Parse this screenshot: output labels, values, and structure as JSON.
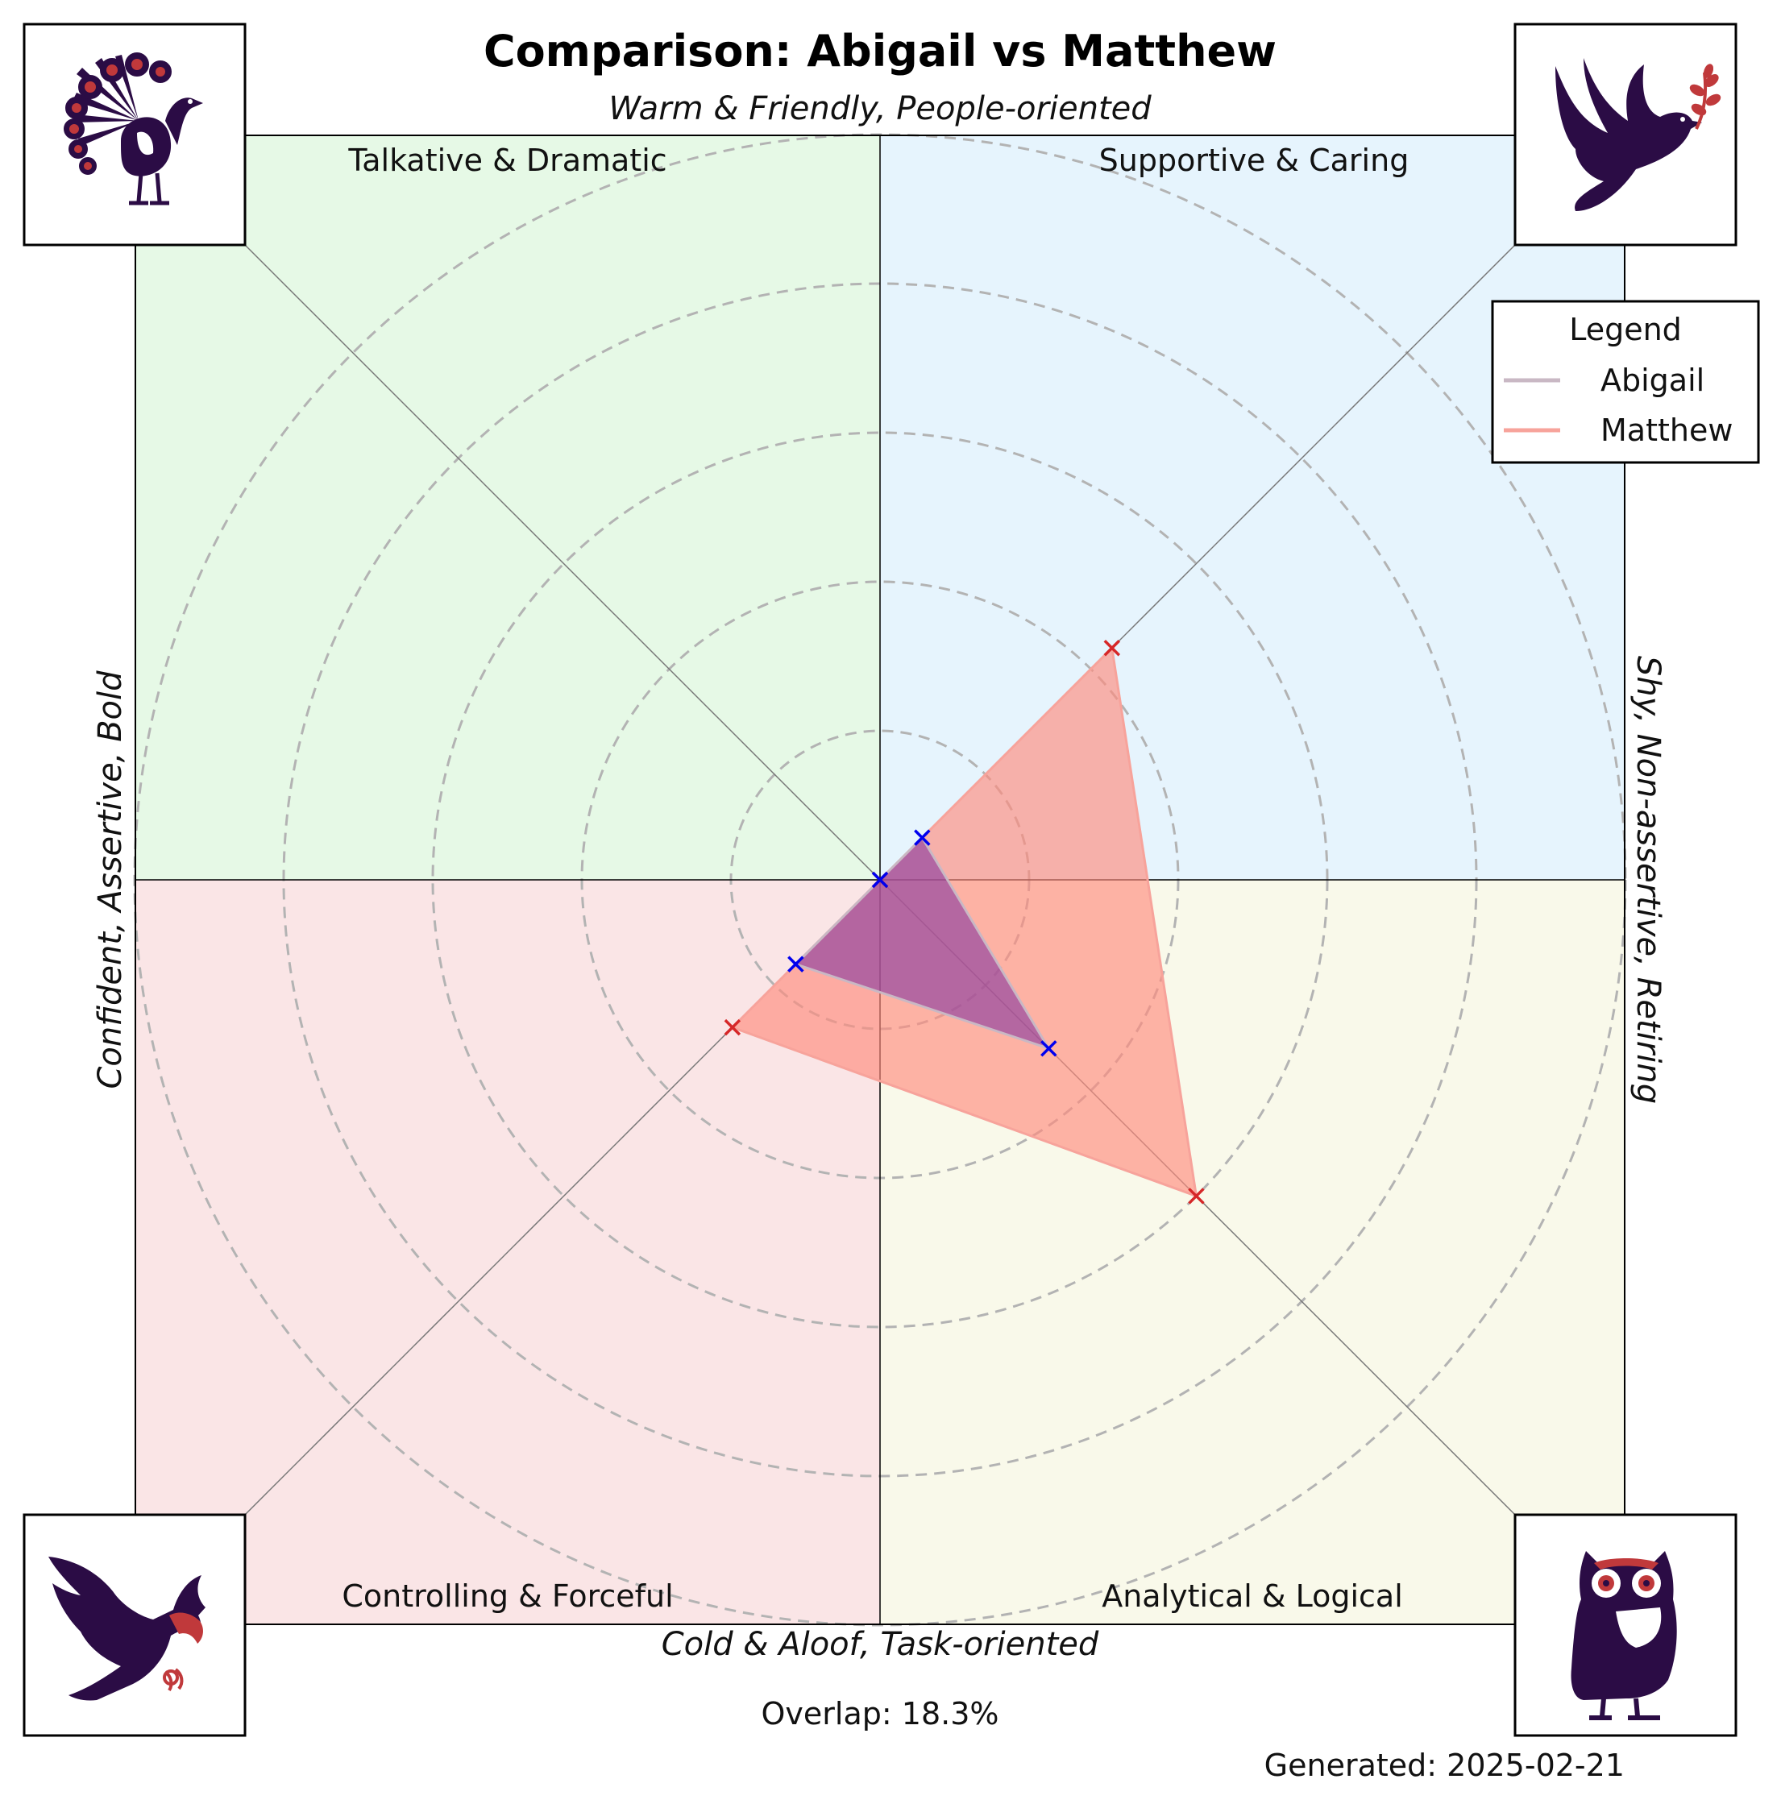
{
  "chart_data": {
    "type": "radar",
    "title": "Comparison: Abigail vs Matthew",
    "axis_labels": {
      "top": "Warm & Friendly, People-oriented",
      "bottom": "Cold & Aloof, Task-oriented",
      "left": "Confident, Assertive, Bold",
      "right": "Shy, Non-assertive, Retiring"
    },
    "quadrants": [
      {
        "name": "Talkative & Dramatic",
        "position": "top-left",
        "color": "#e6f9e6",
        "animal": "peacock-icon"
      },
      {
        "name": "Supportive & Caring",
        "position": "top-right",
        "color": "#e6f4fd",
        "animal": "dove-icon"
      },
      {
        "name": "Controlling & Forceful",
        "position": "bottom-left",
        "color": "#fae5e6",
        "animal": "eagle-icon"
      },
      {
        "name": "Analytical & Logical",
        "position": "bottom-right",
        "color": "#f9f9ea",
        "animal": "owl-icon"
      }
    ],
    "axes_order": [
      "Supportive & Caring",
      "Analytical & Logical",
      "Controlling & Forceful",
      "Talkative & Dramatic"
    ],
    "radial_max": 5,
    "ring_step": 1,
    "grid": true,
    "legend_title": "Legend",
    "legend_position": "top-right",
    "series": [
      {
        "name": "Abigail",
        "values": [
          0.4,
          1.6,
          0.8,
          0.0
        ],
        "line_color": "#c9b8c4",
        "fill_color": "#8e3fa0",
        "marker_color": "#0000ee"
      },
      {
        "name": "Matthew",
        "values": [
          2.2,
          3.0,
          1.4,
          0.0
        ],
        "line_color": "#f7a39b",
        "fill_color": "#ff8c7e",
        "marker_color": "#d62728"
      }
    ]
  },
  "footer": {
    "overlap": "Overlap: 18.3%",
    "generated": "Generated: 2025-02-21"
  }
}
